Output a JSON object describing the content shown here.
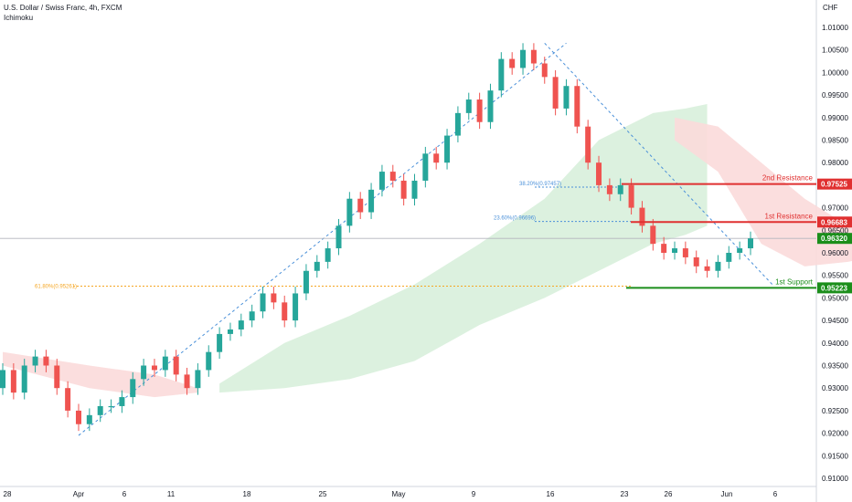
{
  "header": {
    "title": "U.S. Dollar / Swiss Franc, 4h, FXCM",
    "indicator": "Ichimoku"
  },
  "chart_data": {
    "type": "candlestick",
    "y_unit": "CHF",
    "ylim": [
      0.91,
      1.012
    ],
    "y_ticks": [
      "1.01000",
      "1.00500",
      "1.00000",
      "0.99500",
      "0.99000",
      "0.98500",
      "0.98000",
      "0.97500",
      "0.97000",
      "0.96500",
      "0.96000",
      "0.95500",
      "0.95000",
      "0.94500",
      "0.94000",
      "0.93500",
      "0.93000",
      "0.92500",
      "0.92000",
      "0.91500",
      "0.91000"
    ],
    "x_ticks": [
      "28",
      "Apr",
      "6",
      "11",
      "18",
      "25",
      "May",
      "9",
      "16",
      "23",
      "26",
      "Jun",
      "6"
    ],
    "price_path": [
      [
        0.93,
        0.934
      ],
      [
        0.934,
        0.929
      ],
      [
        0.929,
        0.935
      ],
      [
        0.935,
        0.937
      ],
      [
        0.937,
        0.935
      ],
      [
        0.935,
        0.93
      ],
      [
        0.93,
        0.925
      ],
      [
        0.925,
        0.922
      ],
      [
        0.922,
        0.924
      ],
      [
        0.924,
        0.926
      ],
      [
        0.926,
        0.926
      ],
      [
        0.926,
        0.928
      ],
      [
        0.928,
        0.932
      ],
      [
        0.932,
        0.935
      ],
      [
        0.935,
        0.934
      ],
      [
        0.934,
        0.937
      ],
      [
        0.937,
        0.933
      ],
      [
        0.933,
        0.93
      ],
      [
        0.93,
        0.934
      ],
      [
        0.934,
        0.938
      ],
      [
        0.938,
        0.942
      ],
      [
        0.942,
        0.943
      ],
      [
        0.943,
        0.945
      ],
      [
        0.945,
        0.947
      ],
      [
        0.947,
        0.951
      ],
      [
        0.951,
        0.949
      ],
      [
        0.949,
        0.945
      ],
      [
        0.945,
        0.951
      ],
      [
        0.951,
        0.956
      ],
      [
        0.956,
        0.958
      ],
      [
        0.958,
        0.961
      ],
      [
        0.961,
        0.966
      ],
      [
        0.966,
        0.972
      ],
      [
        0.972,
        0.969
      ],
      [
        0.969,
        0.974
      ],
      [
        0.974,
        0.978
      ],
      [
        0.978,
        0.976
      ],
      [
        0.976,
        0.972
      ],
      [
        0.972,
        0.976
      ],
      [
        0.976,
        0.982
      ],
      [
        0.982,
        0.98
      ],
      [
        0.98,
        0.986
      ],
      [
        0.986,
        0.991
      ],
      [
        0.991,
        0.994
      ],
      [
        0.994,
        0.989
      ],
      [
        0.989,
        0.996
      ],
      [
        0.996,
        1.003
      ],
      [
        1.003,
        1.001
      ],
      [
        1.001,
        1.005
      ],
      [
        1.005,
        1.002
      ],
      [
        1.002,
        0.999
      ],
      [
        0.999,
        0.992
      ],
      [
        0.992,
        0.997
      ],
      [
        0.997,
        0.988
      ],
      [
        0.988,
        0.98
      ],
      [
        0.98,
        0.975
      ],
      [
        0.975,
        0.973
      ],
      [
        0.973,
        0.975
      ],
      [
        0.975,
        0.97
      ],
      [
        0.97,
        0.966
      ],
      [
        0.966,
        0.962
      ],
      [
        0.962,
        0.96
      ],
      [
        0.96,
        0.961
      ],
      [
        0.961,
        0.959
      ],
      [
        0.959,
        0.957
      ],
      [
        0.957,
        0.956
      ],
      [
        0.956,
        0.958
      ],
      [
        0.958,
        0.96
      ],
      [
        0.96,
        0.961
      ],
      [
        0.961,
        0.9632
      ]
    ],
    "cloud_green": [
      [
        20,
        0.929,
        0.931
      ],
      [
        26,
        0.93,
        0.94
      ],
      [
        32,
        0.932,
        0.946
      ],
      [
        38,
        0.936,
        0.953
      ],
      [
        44,
        0.944,
        0.962
      ],
      [
        50,
        0.95,
        0.972
      ],
      [
        55,
        0.956,
        0.985
      ],
      [
        60,
        0.962,
        0.991
      ],
      [
        63,
        0.964,
        0.992
      ],
      [
        65,
        0.966,
        0.993
      ]
    ],
    "cloud_red": [
      [
        0,
        0.938,
        0.935
      ],
      [
        8,
        0.935,
        0.93
      ],
      [
        14,
        0.933,
        0.928
      ],
      [
        18,
        0.93,
        0.929
      ],
      [
        62,
        0.99,
        0.985
      ],
      [
        66,
        0.988,
        0.978
      ],
      [
        70,
        0.98,
        0.962
      ],
      [
        74,
        0.972,
        0.957
      ],
      [
        78,
        0.966,
        0.958
      ],
      [
        82,
        0.962,
        0.96
      ]
    ],
    "lines": {
      "support": {
        "label": "1st Support",
        "value": 0.95223,
        "color": "#1b8e1b",
        "tag": "0.95223"
      },
      "res1": {
        "label": "1st Resistance",
        "value": 0.96683,
        "color": "#e03030",
        "tag": "0.96683"
      },
      "res2": {
        "label": "2nd Resistance",
        "value": 0.97525,
        "color": "#e03030",
        "tag": "0.97525"
      },
      "current": {
        "value": 0.9632,
        "color": "#1b8e1b",
        "tag": "0.96320"
      }
    },
    "fib": [
      {
        "label": "38.20%(0.97457)",
        "value": 0.97457
      },
      {
        "label": "23.60%(0.96696)",
        "value": 0.96696
      },
      {
        "label": "61.80%(0.95261)",
        "value": 0.95261
      }
    ],
    "colors": {
      "up": "#26a69a",
      "down": "#ef5350",
      "cloud_green": "#d8efdc",
      "cloud_red": "#fbdada",
      "fib": "#4a90d9",
      "fib_orange": "#f5a623"
    }
  }
}
